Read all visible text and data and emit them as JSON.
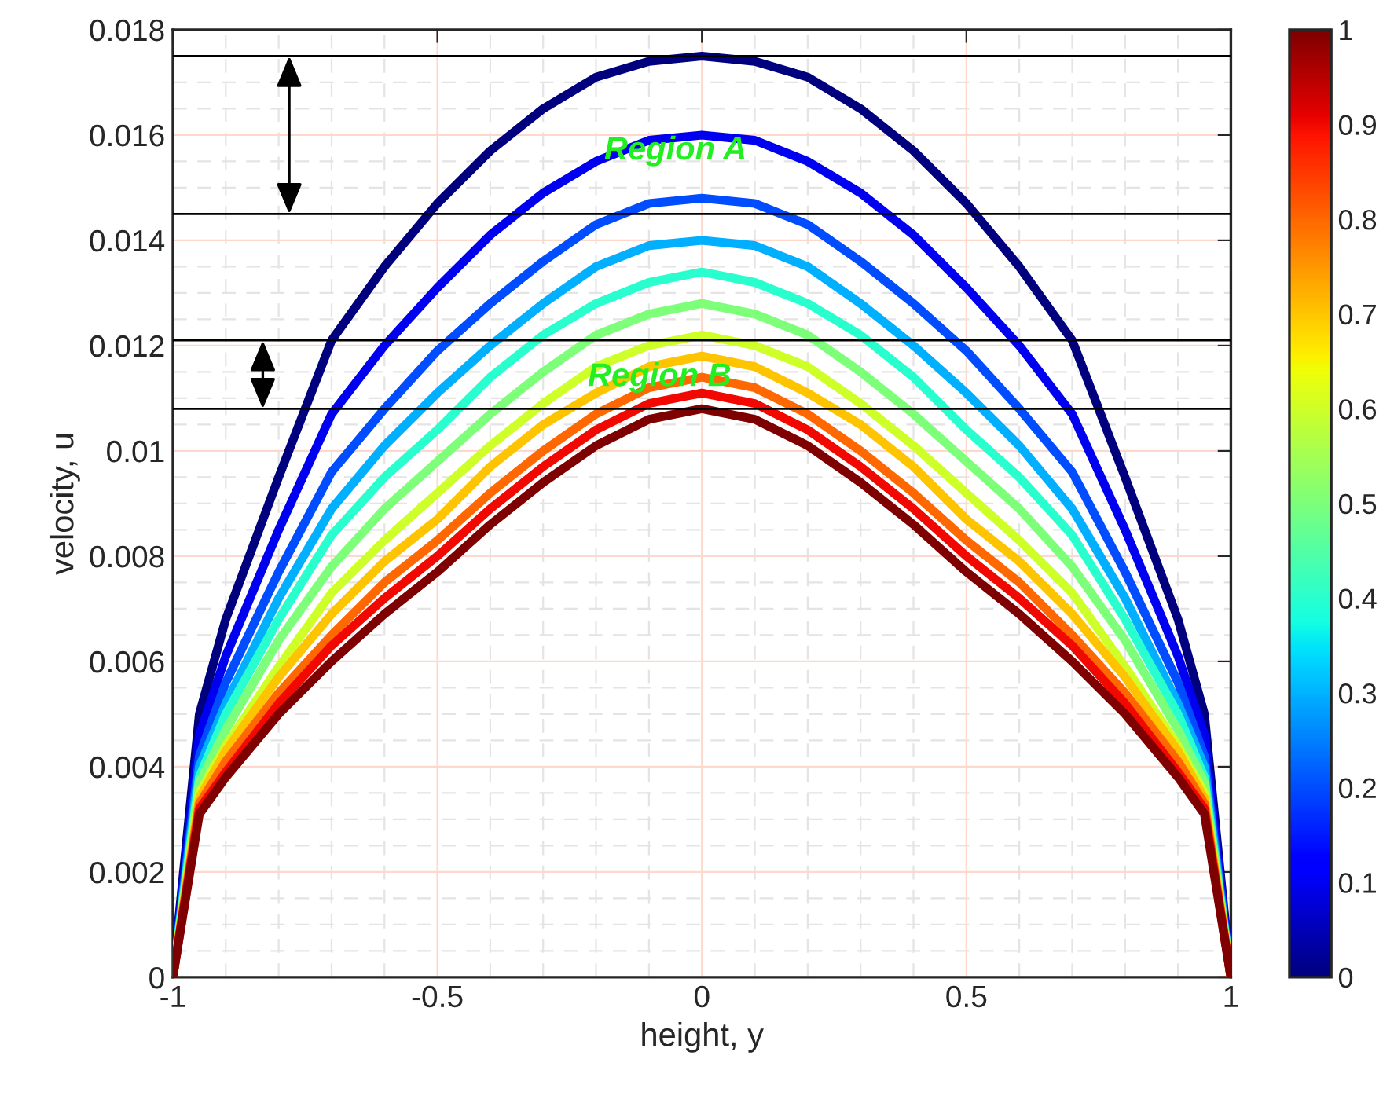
{
  "chart_data": {
    "type": "line",
    "xlabel": "height, y",
    "ylabel": "velocity, u",
    "x": [
      -1,
      -0.95,
      -0.9,
      -0.8,
      -0.7,
      -0.6,
      -0.5,
      -0.4,
      -0.3,
      -0.2,
      -0.1,
      0,
      0.1,
      0.2,
      0.3,
      0.4,
      0.5,
      0.6,
      0.7,
      0.8,
      0.9,
      0.95,
      1
    ],
    "series": [
      {
        "color": "#00007f",
        "values": [
          0,
          0.005,
          0.0068,
          0.0095,
          0.0121,
          0.0135,
          0.0147,
          0.0157,
          0.0165,
          0.0171,
          0.0174,
          0.0175,
          0.0174,
          0.0171,
          0.0165,
          0.0157,
          0.0147,
          0.0135,
          0.0121,
          0.0095,
          0.0068,
          0.005,
          0
        ]
      },
      {
        "color": "#0000f1",
        "values": [
          0,
          0.0046,
          0.0061,
          0.0085,
          0.0107,
          0.012,
          0.0131,
          0.0141,
          0.0149,
          0.0155,
          0.0159,
          0.016,
          0.0159,
          0.0155,
          0.0149,
          0.0141,
          0.0131,
          0.012,
          0.0107,
          0.0085,
          0.0061,
          0.0046,
          0
        ]
      },
      {
        "color": "#004cff",
        "values": [
          0,
          0.0042,
          0.0056,
          0.0077,
          0.0096,
          0.0108,
          0.0119,
          0.0128,
          0.0136,
          0.0143,
          0.0147,
          0.0148,
          0.0147,
          0.0143,
          0.0136,
          0.0128,
          0.0119,
          0.0108,
          0.0096,
          0.0077,
          0.0056,
          0.0042,
          0
        ]
      },
      {
        "color": "#00b0ff",
        "values": [
          0,
          0.004,
          0.0052,
          0.0072,
          0.0089,
          0.0101,
          0.0111,
          0.012,
          0.0128,
          0.0135,
          0.0139,
          0.014,
          0.0139,
          0.0135,
          0.0128,
          0.012,
          0.0111,
          0.0101,
          0.0089,
          0.0072,
          0.0052,
          0.004,
          0
        ]
      },
      {
        "color": "#29ffce",
        "values": [
          0,
          0.0038,
          0.005,
          0.0068,
          0.0084,
          0.0095,
          0.0104,
          0.0114,
          0.0122,
          0.0128,
          0.0132,
          0.0134,
          0.0132,
          0.0128,
          0.0122,
          0.0114,
          0.0104,
          0.0095,
          0.0084,
          0.0068,
          0.005,
          0.0038,
          0
        ]
      },
      {
        "color": "#7dff7a",
        "values": [
          0,
          0.0037,
          0.0047,
          0.0064,
          0.0078,
          0.0089,
          0.0098,
          0.0107,
          0.0115,
          0.0122,
          0.0126,
          0.0128,
          0.0126,
          0.0122,
          0.0115,
          0.0107,
          0.0098,
          0.0089,
          0.0078,
          0.0064,
          0.0047,
          0.0037,
          0
        ]
      },
      {
        "color": "#ceff29",
        "values": [
          0,
          0.0035,
          0.0044,
          0.0059,
          0.0073,
          0.0083,
          0.0092,
          0.0101,
          0.0109,
          0.0116,
          0.012,
          0.0122,
          0.012,
          0.0116,
          0.0109,
          0.0101,
          0.0092,
          0.0083,
          0.0073,
          0.0059,
          0.0044,
          0.0035,
          0
        ]
      },
      {
        "color": "#ffc400",
        "values": [
          0,
          0.0034,
          0.0043,
          0.0057,
          0.0069,
          0.0079,
          0.0087,
          0.0097,
          0.0105,
          0.0111,
          0.0116,
          0.0118,
          0.0116,
          0.0111,
          0.0105,
          0.0097,
          0.0087,
          0.0079,
          0.0069,
          0.0057,
          0.0043,
          0.0034,
          0
        ]
      },
      {
        "color": "#ff6800",
        "values": [
          0,
          0.0033,
          0.0041,
          0.0054,
          0.0065,
          0.0075,
          0.0083,
          0.0092,
          0.01,
          0.0107,
          0.0112,
          0.0114,
          0.0112,
          0.0107,
          0.01,
          0.0092,
          0.0083,
          0.0075,
          0.0065,
          0.0054,
          0.0041,
          0.0033,
          0
        ]
      },
      {
        "color": "#f10800",
        "values": [
          0,
          0.0032,
          0.0039,
          0.0052,
          0.0063,
          0.0072,
          0.008,
          0.0089,
          0.0097,
          0.0104,
          0.0109,
          0.0111,
          0.0109,
          0.0104,
          0.0097,
          0.0089,
          0.008,
          0.0072,
          0.0063,
          0.0052,
          0.0039,
          0.0032,
          0
        ]
      },
      {
        "color": "#7f0000",
        "values": [
          0,
          0.0031,
          0.0038,
          0.005,
          0.006,
          0.0069,
          0.0077,
          0.0086,
          0.0094,
          0.0101,
          0.0106,
          0.0108,
          0.0106,
          0.0101,
          0.0094,
          0.0086,
          0.0077,
          0.0069,
          0.006,
          0.005,
          0.0038,
          0.0031,
          0
        ]
      }
    ],
    "xlim": [
      -1,
      1
    ],
    "xticks": [
      -1,
      -0.5,
      0,
      0.5,
      1
    ],
    "ylim": [
      0,
      0.018
    ],
    "yticks": [
      0,
      0.002,
      0.004,
      0.006,
      0.008,
      0.01,
      0.012,
      0.014,
      0.016,
      0.018
    ],
    "clim": [
      0,
      1
    ],
    "cticks": [
      0,
      0.1,
      0.2,
      0.3,
      0.4,
      0.5,
      0.6,
      0.7,
      0.8,
      0.9,
      1
    ],
    "ref_lines": [
      {
        "axis": "y",
        "value": 0.0175,
        "color": "#000000"
      },
      {
        "axis": "y",
        "value": 0.0145,
        "color": "#000000"
      },
      {
        "axis": "y",
        "value": 0.0121,
        "color": "#000000"
      },
      {
        "axis": "y",
        "value": 0.0108,
        "color": "#000000"
      }
    ],
    "annotations": [
      "Region A",
      "Region B"
    ],
    "grid": true,
    "marker": "none",
    "line_style": "solid",
    "legend": false
  }
}
